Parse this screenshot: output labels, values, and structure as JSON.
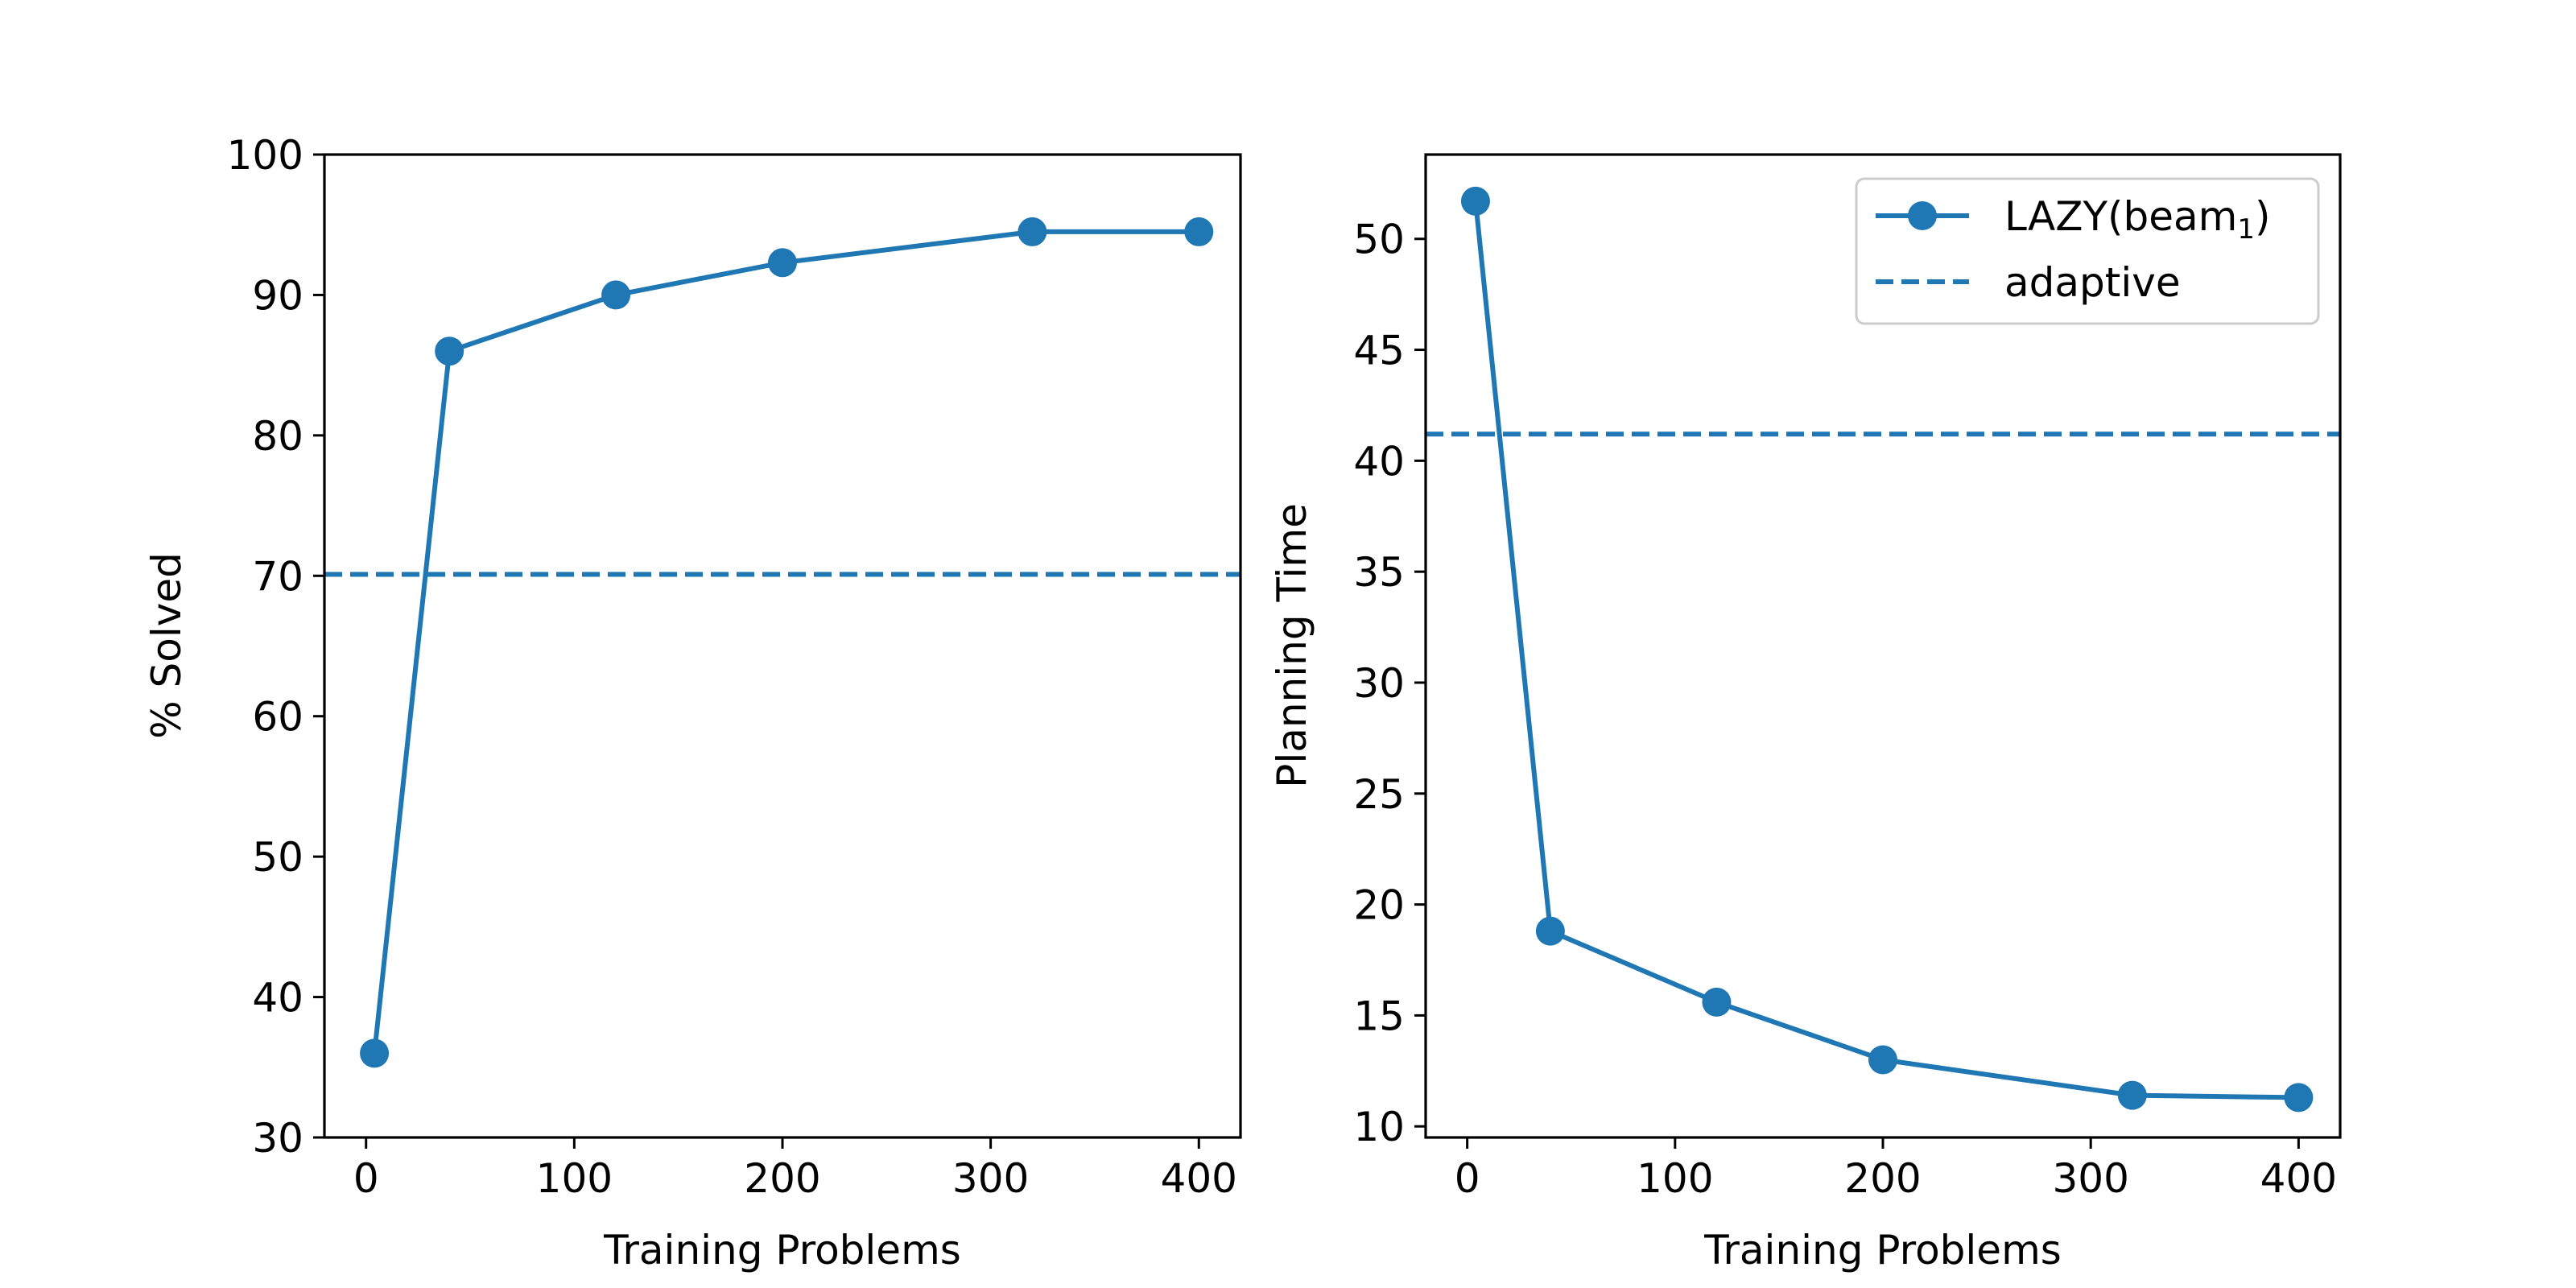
{
  "colors": {
    "series": "#1f77b4",
    "axis": "#000000",
    "legend_border": "#cccccc"
  },
  "chart_data": [
    {
      "type": "line",
      "name": "solved",
      "xlabel": "Training Problems",
      "ylabel": "% Solved",
      "xlim": [
        -20,
        420
      ],
      "ylim": [
        30,
        100
      ],
      "xticks": [
        0,
        100,
        200,
        300,
        400
      ],
      "yticks": [
        30,
        40,
        50,
        60,
        70,
        80,
        90,
        100
      ],
      "series": [
        {
          "name": "LAZY(beam1)",
          "x": [
            4,
            40,
            120,
            200,
            320,
            400
          ],
          "values": [
            36.0,
            86.0,
            90.0,
            92.3,
            94.5,
            94.5
          ]
        }
      ],
      "hlines": [
        {
          "name": "adaptive",
          "value": 70.1
        }
      ]
    },
    {
      "type": "line",
      "name": "time",
      "xlabel": "Training Problems",
      "ylabel": "Planning Time",
      "xlim": [
        -20,
        420
      ],
      "ylim": [
        9.5,
        53.8
      ],
      "xticks": [
        0,
        100,
        200,
        300,
        400
      ],
      "yticks": [
        10,
        15,
        20,
        25,
        30,
        35,
        40,
        45,
        50
      ],
      "series": [
        {
          "name": "LAZY(beam1)",
          "x": [
            4,
            40,
            120,
            200,
            320,
            400
          ],
          "values": [
            51.7,
            18.8,
            15.6,
            13.0,
            11.4,
            11.3
          ]
        }
      ],
      "hlines": [
        {
          "name": "adaptive",
          "value": 41.2
        }
      ],
      "legend": {
        "position": "top-right",
        "entries": [
          {
            "label": "LAZY(beam",
            "sub": "1",
            "suffix": ")",
            "style": "line-marker"
          },
          {
            "label": "adaptive",
            "style": "dashed"
          }
        ]
      }
    }
  ]
}
